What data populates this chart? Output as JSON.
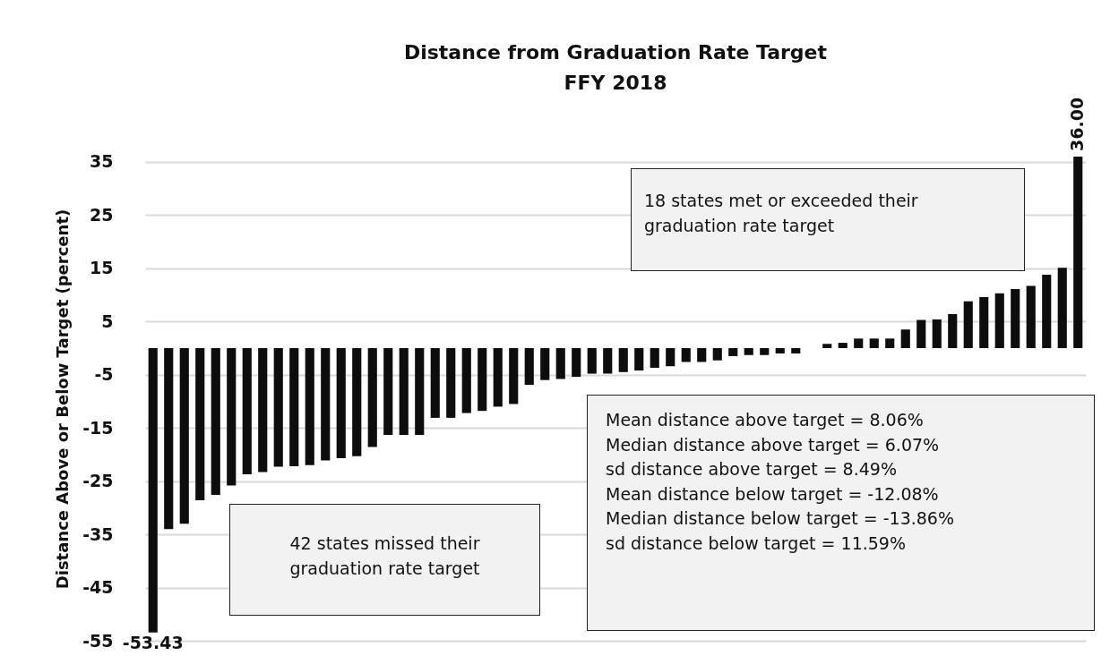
{
  "chart_data": {
    "type": "bar",
    "title": "Distance from Graduation Rate Target",
    "subtitle": "FFY 2018",
    "ylabel": "Distance Above or Below Target (percent)",
    "categories": [
      null,
      null,
      null,
      null,
      null,
      null,
      null,
      null,
      null,
      null,
      null,
      null,
      null,
      null,
      null,
      null,
      null,
      null,
      null,
      null,
      null,
      null,
      null,
      null,
      null,
      null,
      null,
      null,
      null,
      null,
      null,
      null,
      null,
      null,
      null,
      null,
      null,
      null,
      null,
      null,
      null,
      null,
      null,
      null,
      null,
      null,
      null,
      null,
      null,
      null,
      null,
      null,
      null,
      null,
      null,
      null,
      null,
      null,
      null,
      null
    ],
    "values": [
      -53.43,
      -34.0,
      -33.0,
      -28.6,
      -27.6,
      -25.8,
      -23.7,
      -23.3,
      -22.3,
      -22.2,
      -22.0,
      -21.1,
      -20.7,
      -20.3,
      -18.6,
      -16.3,
      -16.3,
      -16.3,
      -13.1,
      -13.1,
      -12.2,
      -11.8,
      -11.0,
      -10.5,
      -6.9,
      -6.0,
      -5.8,
      -5.4,
      -4.8,
      -4.8,
      -4.5,
      -4.2,
      -3.7,
      -3.4,
      -2.6,
      -2.6,
      -2.3,
      -1.5,
      -1.3,
      -1.3,
      -1.0,
      -1.0,
      0,
      0.8,
      1.0,
      1.8,
      1.8,
      1.8,
      3.5,
      5.3,
      5.4,
      6.4,
      8.8,
      9.6,
      10.3,
      11.1,
      11.7,
      13.8,
      15.1,
      36.0
    ],
    "value_labels": [
      "-53.43",
      null,
      null,
      null,
      null,
      null,
      null,
      null,
      null,
      null,
      null,
      null,
      null,
      null,
      null,
      null,
      null,
      null,
      null,
      null,
      null,
      null,
      null,
      null,
      null,
      null,
      null,
      null,
      null,
      null,
      null,
      null,
      null,
      null,
      null,
      null,
      null,
      null,
      null,
      null,
      null,
      null,
      null,
      null,
      null,
      null,
      null,
      null,
      null,
      null,
      null,
      null,
      null,
      null,
      null,
      null,
      null,
      null,
      null,
      "36.00"
    ],
    "color": "#0d0d0d",
    "ylim": [
      -55,
      36
    ],
    "yticks": [
      -55,
      -45,
      -35,
      -25,
      -15,
      -5,
      5,
      15,
      25,
      35
    ],
    "grid": "y",
    "tick_labels": "y",
    "annotations": [
      "18 states met or exceeded  their graduation rate target",
      "42 states missed their graduation rate target",
      "Mean distance above target = 8.06%\nMedian distance above target = 6.07%\nsd distance above target = 8.49%\nMean distance below target = -12.08%\nMedian distance below target = -13.86%\nsd distance below target = 11.59%"
    ]
  }
}
